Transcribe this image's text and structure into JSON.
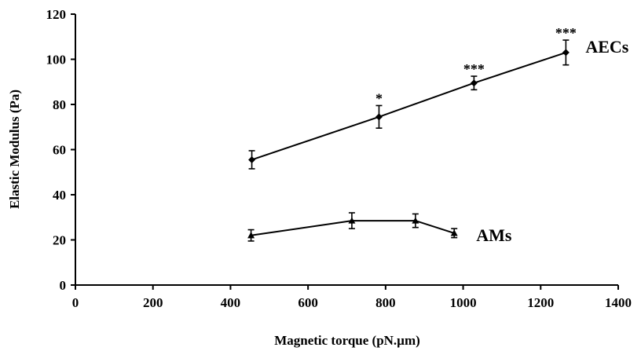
{
  "chart_data": {
    "type": "line",
    "title": "",
    "xlabel": "Magnetic torque (pN.µm)",
    "ylabel": "Elastic Modulus (Pa)",
    "xlim": [
      0,
      1400
    ],
    "ylim": [
      0,
      120
    ],
    "xticks": [
      0,
      200,
      400,
      600,
      800,
      1000,
      1200,
      1400
    ],
    "yticks": [
      0,
      20,
      40,
      60,
      80,
      100,
      120
    ],
    "grid": false,
    "legend": "none",
    "series": [
      {
        "name": "AECs",
        "marker": "diamond",
        "color": "#000000",
        "points": [
          {
            "x": 455,
            "y": 55.5,
            "err": 4,
            "sig": ""
          },
          {
            "x": 783,
            "y": 74.5,
            "err": 5,
            "sig": "*"
          },
          {
            "x": 1028,
            "y": 89.5,
            "err": 3,
            "sig": "***"
          },
          {
            "x": 1265,
            "y": 103,
            "err": 5.5,
            "sig": "***"
          }
        ]
      },
      {
        "name": "AMs",
        "marker": "triangle",
        "color": "#000000",
        "points": [
          {
            "x": 453,
            "y": 22,
            "err": 2.5,
            "sig": ""
          },
          {
            "x": 713,
            "y": 28.5,
            "err": 3.5,
            "sig": ""
          },
          {
            "x": 877,
            "y": 28.5,
            "err": 3,
            "sig": ""
          },
          {
            "x": 977,
            "y": 23,
            "err": 2,
            "sig": ""
          }
        ]
      }
    ]
  }
}
